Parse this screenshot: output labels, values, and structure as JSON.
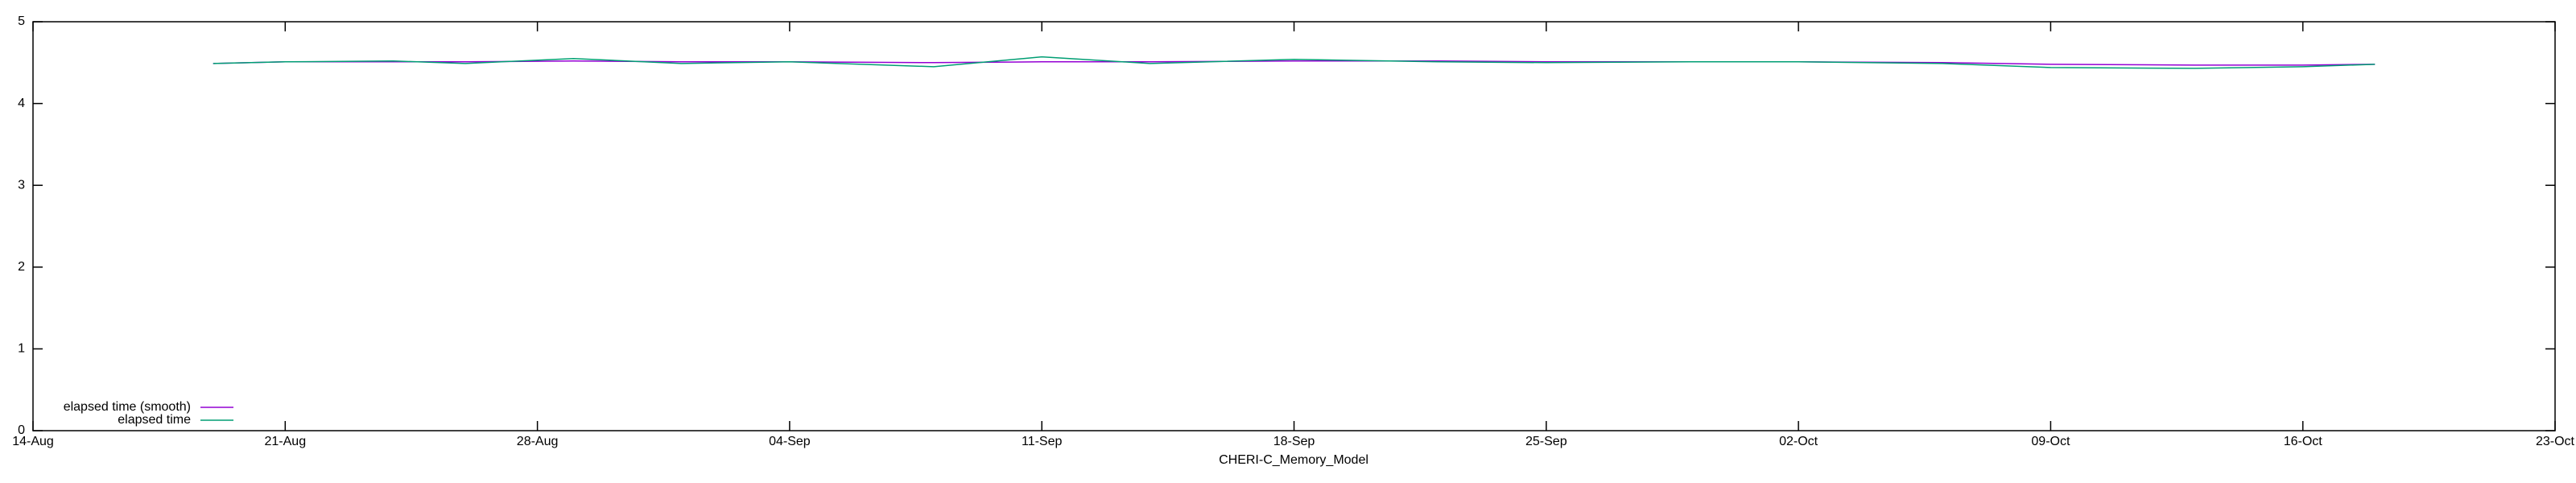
{
  "chart_data": {
    "type": "line",
    "xlabel": "CHERI-C_Memory_Model",
    "x": [
      "19-Aug",
      "21-Aug",
      "24-Aug",
      "26-Aug",
      "29-Aug",
      "01-Sep",
      "04-Sep",
      "08-Sep",
      "11-Sep",
      "14-Sep",
      "18-Sep",
      "22-Sep",
      "25-Sep",
      "29-Sep",
      "02-Oct",
      "06-Oct",
      "09-Oct",
      "13-Oct",
      "16-Oct",
      "18-Oct"
    ],
    "series": [
      {
        "name": "elapsed time (smooth)",
        "color": "#9400d3",
        "values": [
          4.49,
          4.51,
          4.51,
          4.51,
          4.52,
          4.51,
          4.51,
          4.5,
          4.51,
          4.51,
          4.52,
          4.52,
          4.51,
          4.51,
          4.51,
          4.5,
          4.48,
          4.47,
          4.47,
          4.48
        ]
      },
      {
        "name": "elapsed time",
        "color": "#009e73",
        "values": [
          4.49,
          4.51,
          4.52,
          4.49,
          4.55,
          4.49,
          4.51,
          4.45,
          4.57,
          4.49,
          4.54,
          4.51,
          4.5,
          4.51,
          4.51,
          4.49,
          4.44,
          4.43,
          4.45,
          4.48
        ]
      }
    ],
    "xlim": [
      "14-Aug",
      "23-Oct"
    ],
    "xticks": [
      "14-Aug",
      "21-Aug",
      "28-Aug",
      "04-Sep",
      "11-Sep",
      "18-Sep",
      "25-Sep",
      "02-Oct",
      "09-Oct",
      "16-Oct",
      "23-Oct"
    ],
    "ylim": [
      0,
      5
    ],
    "yticks": [
      0,
      1,
      2,
      3,
      4,
      5
    ],
    "legend": "lower left"
  }
}
